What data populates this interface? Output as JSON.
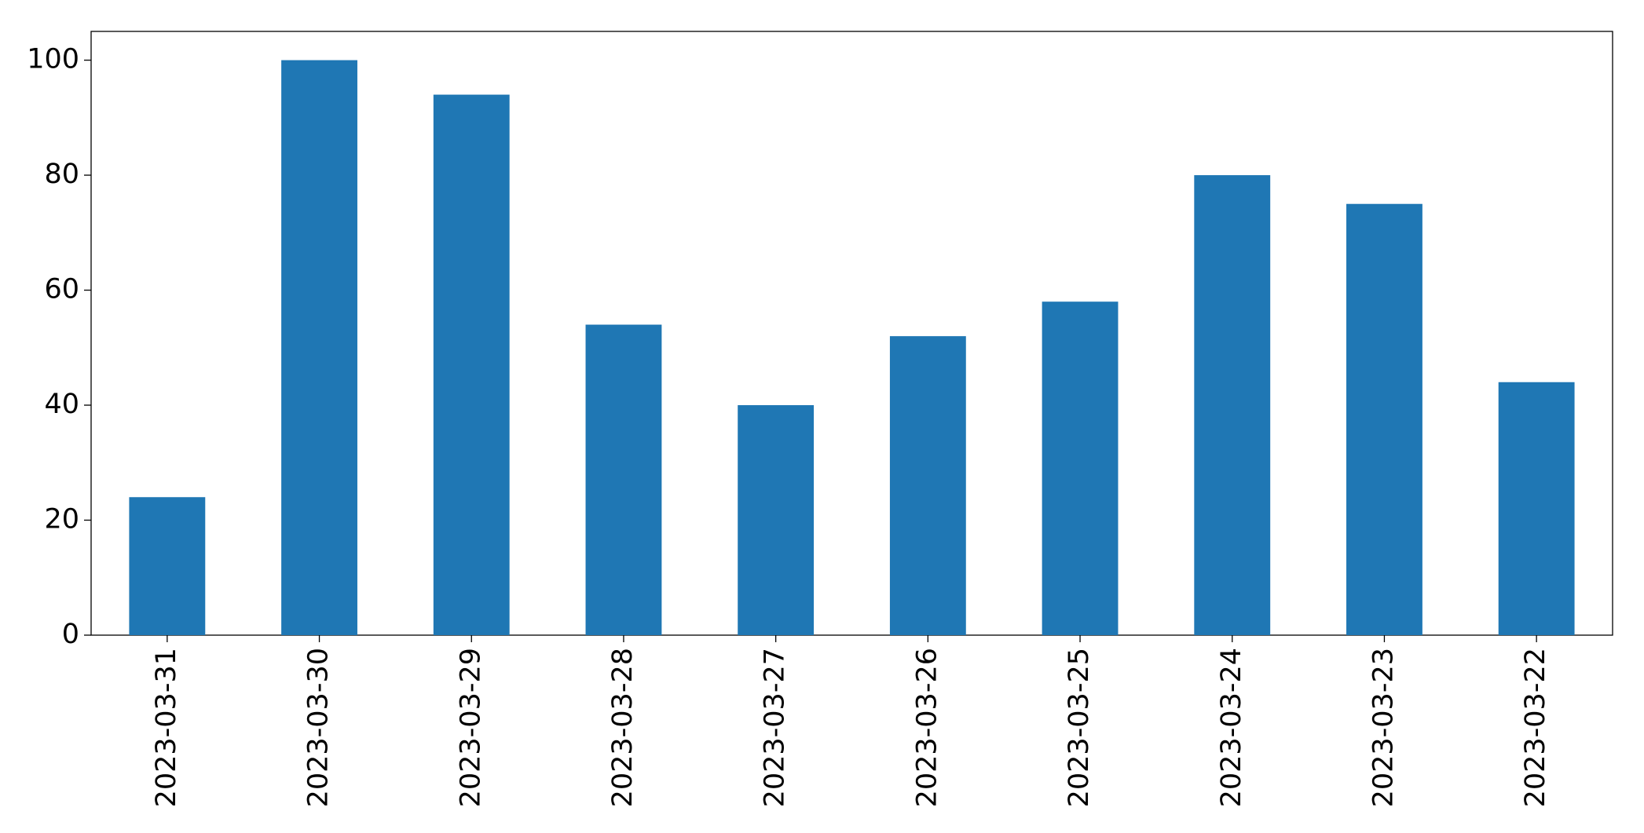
{
  "chart_data": {
    "type": "bar",
    "categories": [
      "2023-03-31",
      "2023-03-30",
      "2023-03-29",
      "2023-03-28",
      "2023-03-27",
      "2023-03-26",
      "2023-03-25",
      "2023-03-24",
      "2023-03-23",
      "2023-03-22"
    ],
    "values": [
      24,
      100,
      94,
      54,
      40,
      52,
      58,
      80,
      75,
      44
    ],
    "color": "#1f77b4",
    "ylim": [
      0,
      105
    ],
    "yticks": [
      0,
      20,
      40,
      60,
      80,
      100
    ],
    "grid": false
  }
}
